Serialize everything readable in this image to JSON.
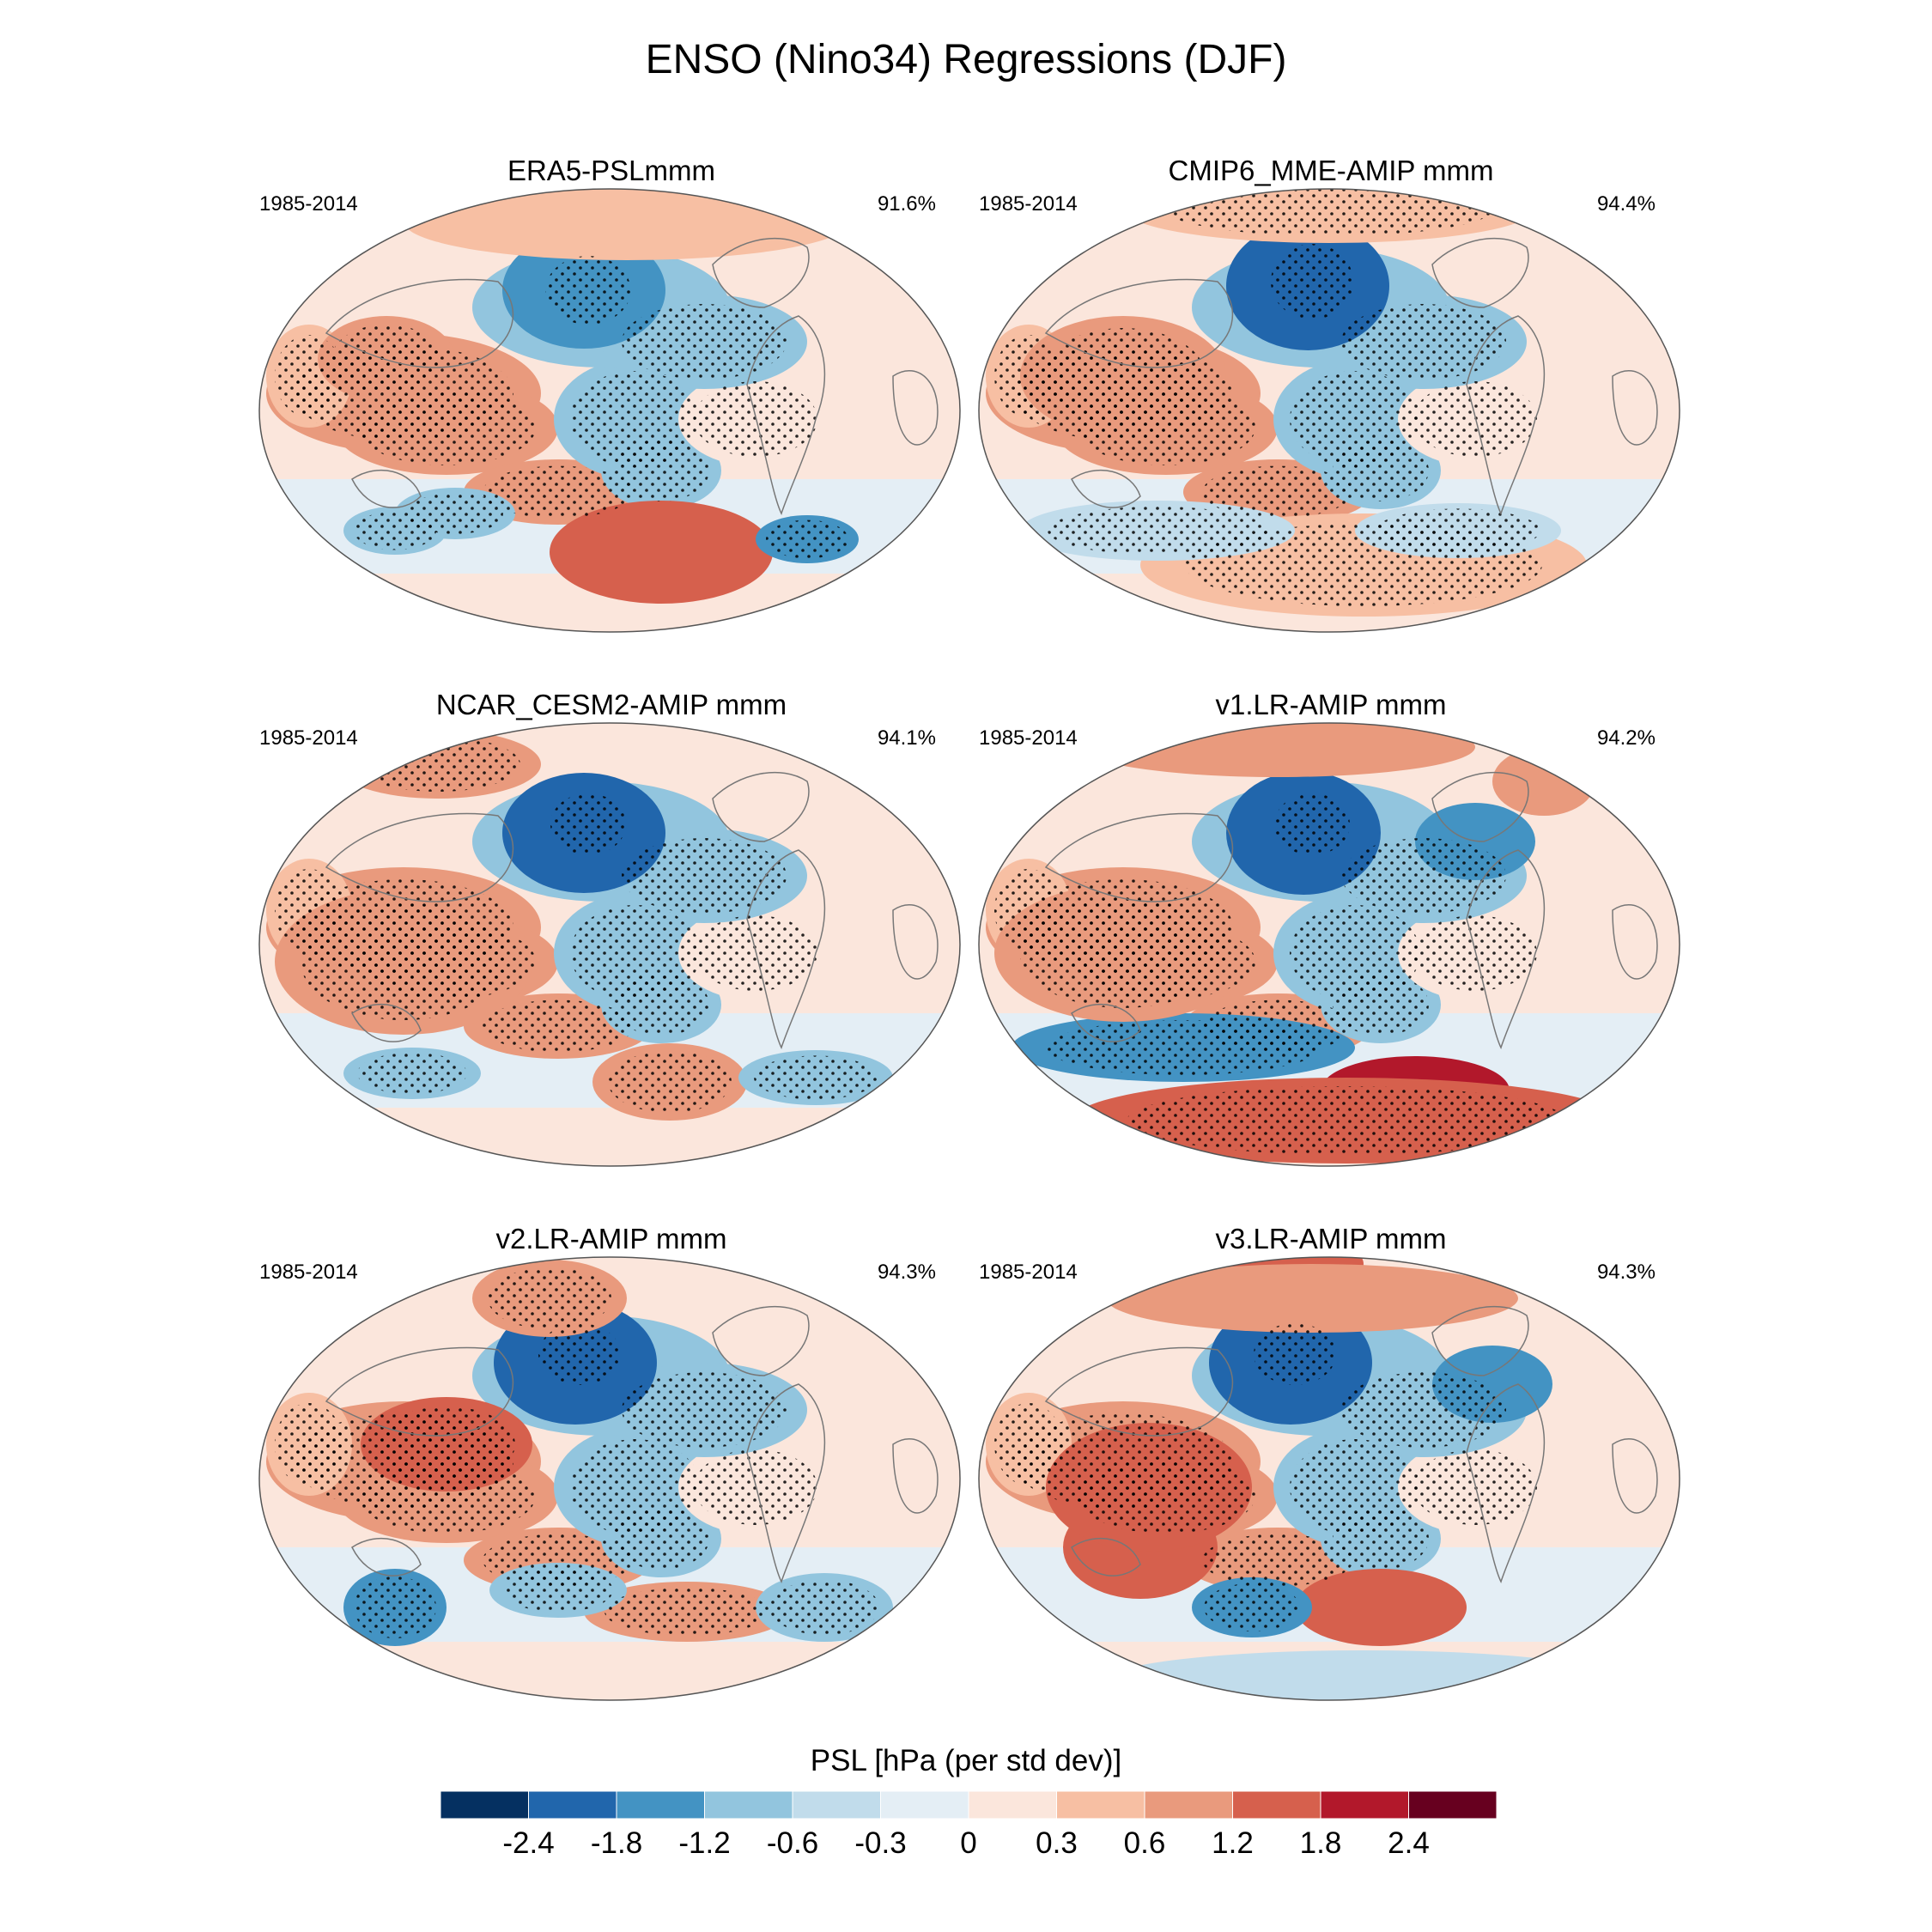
{
  "figure_title": "ENSO (Nino34) Regressions (DJF)",
  "colorbar": {
    "title": "PSL [hPa (per std dev)]",
    "tick_labels": [
      "-2.4",
      "-1.8",
      "-1.2",
      "-0.6",
      "-0.3",
      "0",
      "0.3",
      "0.6",
      "1.2",
      "1.8",
      "2.4"
    ],
    "colors": [
      "#053061",
      "#2166ac",
      "#4393c3",
      "#92c5de",
      "#c1dceb",
      "#e4eef5",
      "#fbe6dc",
      "#f7bfa3",
      "#e99a7d",
      "#d6604d",
      "#b2182b",
      "#67001f"
    ]
  },
  "panels": [
    {
      "title": "ERA5-PSLmmm",
      "period": "1985-2014",
      "pattern_score": "91.6%"
    },
    {
      "title": "CMIP6_MME-AMIP  mmm",
      "period": "1985-2014",
      "pattern_score": "94.4%"
    },
    {
      "title": "NCAR_CESM2-AMIP  mmm",
      "period": "1985-2014",
      "pattern_score": "94.1%"
    },
    {
      "title": "v1.LR-AMIP  mmm",
      "period": "1985-2014",
      "pattern_score": "94.2%"
    },
    {
      "title": "v2.LR-AMIP  mmm",
      "period": "1985-2014",
      "pattern_score": "94.3%"
    },
    {
      "title": "v3.LR-AMIP  mmm",
      "period": "1985-2014",
      "pattern_score": "94.3%"
    }
  ]
}
